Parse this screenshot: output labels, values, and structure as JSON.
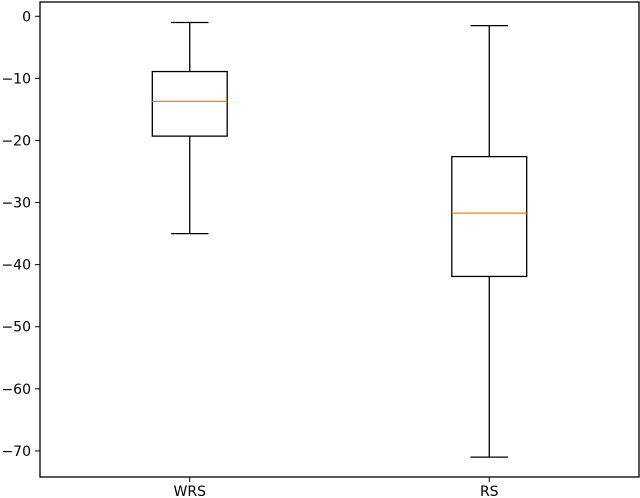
{
  "chart_data": {
    "type": "boxplot",
    "categories": [
      "WRS",
      "RS"
    ],
    "boxes": [
      {
        "category": "WRS",
        "whisker_low": -35.0,
        "q1": -19.3,
        "median": -13.7,
        "q3": -8.9,
        "whisker_high": -1.0
      },
      {
        "category": "RS",
        "whisker_low": -71.0,
        "q1": -41.9,
        "median": -31.7,
        "q3": -22.6,
        "whisker_high": -1.5
      }
    ],
    "y_ticks": [
      0,
      -10,
      -20,
      -30,
      -40,
      -50,
      -60,
      -70
    ],
    "y_tick_labels": [
      "0",
      "−10",
      "−20",
      "−30",
      "−40",
      "−50",
      "−60",
      "−70"
    ],
    "ylim": [
      -74.2,
      2.3
    ],
    "title": "",
    "xlabel": "",
    "ylabel": "",
    "grid": false,
    "colors": {
      "box": "#000000",
      "median": "#ff7f0e",
      "axes": "#000000",
      "background": "#ffffff"
    }
  }
}
